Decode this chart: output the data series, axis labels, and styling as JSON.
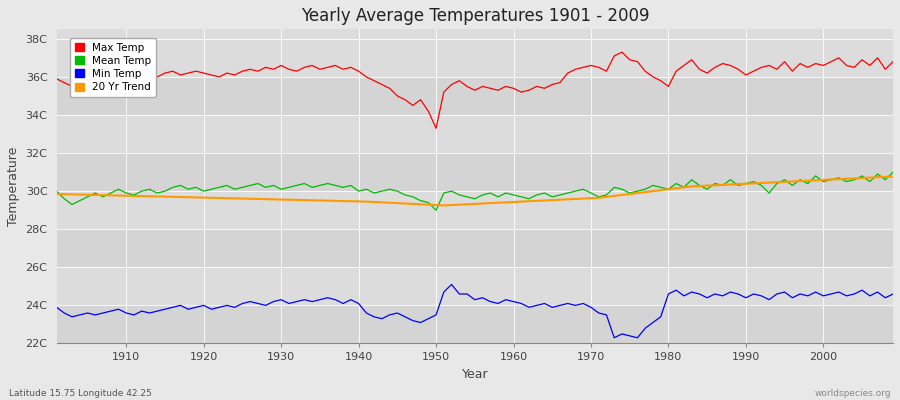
{
  "title": "Yearly Average Temperatures 1901 - 2009",
  "xlabel": "Year",
  "ylabel": "Temperature",
  "bottom_left": "Latitude 15.75 Longitude 42.25",
  "bottom_right": "worldspecies.org",
  "background_color": "#e8e8e8",
  "plot_bg_color": "#dcdcdc",
  "grid_color": "#ffffff",
  "band_colors": [
    "#d8d8d8",
    "#e0e0e0"
  ],
  "years": [
    1901,
    1902,
    1903,
    1904,
    1905,
    1906,
    1907,
    1908,
    1909,
    1910,
    1911,
    1912,
    1913,
    1914,
    1915,
    1916,
    1917,
    1918,
    1919,
    1920,
    1921,
    1922,
    1923,
    1924,
    1925,
    1926,
    1927,
    1928,
    1929,
    1930,
    1931,
    1932,
    1933,
    1934,
    1935,
    1936,
    1937,
    1938,
    1939,
    1940,
    1941,
    1942,
    1943,
    1944,
    1945,
    1946,
    1947,
    1948,
    1949,
    1950,
    1951,
    1952,
    1953,
    1954,
    1955,
    1956,
    1957,
    1958,
    1959,
    1960,
    1961,
    1962,
    1963,
    1964,
    1965,
    1966,
    1967,
    1968,
    1969,
    1970,
    1971,
    1972,
    1973,
    1974,
    1975,
    1976,
    1977,
    1978,
    1979,
    1980,
    1981,
    1982,
    1983,
    1984,
    1985,
    1986,
    1987,
    1988,
    1989,
    1990,
    1991,
    1992,
    1993,
    1994,
    1995,
    1996,
    1997,
    1998,
    1999,
    2000,
    2001,
    2002,
    2003,
    2004,
    2005,
    2006,
    2007,
    2008,
    2009
  ],
  "max_temp": [
    35.9,
    35.7,
    35.5,
    35.7,
    35.8,
    36.0,
    35.9,
    35.8,
    35.9,
    36.1,
    36.0,
    35.8,
    35.9,
    36.0,
    36.2,
    36.3,
    36.1,
    36.2,
    36.3,
    36.2,
    36.1,
    36.0,
    36.2,
    36.1,
    36.3,
    36.4,
    36.3,
    36.5,
    36.4,
    36.6,
    36.4,
    36.3,
    36.5,
    36.6,
    36.4,
    36.5,
    36.6,
    36.4,
    36.5,
    36.3,
    36.0,
    35.8,
    35.6,
    35.4,
    35.0,
    34.8,
    34.5,
    34.8,
    34.2,
    33.3,
    35.2,
    35.6,
    35.8,
    35.5,
    35.3,
    35.5,
    35.4,
    35.3,
    35.5,
    35.4,
    35.2,
    35.3,
    35.5,
    35.4,
    35.6,
    35.7,
    36.2,
    36.4,
    36.5,
    36.6,
    36.5,
    36.3,
    37.1,
    37.3,
    36.9,
    36.8,
    36.3,
    36.0,
    35.8,
    35.5,
    36.3,
    36.6,
    36.9,
    36.4,
    36.2,
    36.5,
    36.7,
    36.6,
    36.4,
    36.1,
    36.3,
    36.5,
    36.6,
    36.4,
    36.8,
    36.3,
    36.7,
    36.5,
    36.7,
    36.6,
    36.8,
    37.0,
    36.6,
    36.5,
    36.9,
    36.6,
    37.0,
    36.4,
    36.8
  ],
  "mean_temp": [
    30.0,
    29.6,
    29.3,
    29.5,
    29.7,
    29.9,
    29.7,
    29.9,
    30.1,
    29.9,
    29.8,
    30.0,
    30.1,
    29.9,
    30.0,
    30.2,
    30.3,
    30.1,
    30.2,
    30.0,
    30.1,
    30.2,
    30.3,
    30.1,
    30.2,
    30.3,
    30.4,
    30.2,
    30.3,
    30.1,
    30.2,
    30.3,
    30.4,
    30.2,
    30.3,
    30.4,
    30.3,
    30.2,
    30.3,
    30.0,
    30.1,
    29.9,
    30.0,
    30.1,
    30.0,
    29.8,
    29.7,
    29.5,
    29.4,
    29.0,
    29.9,
    30.0,
    29.8,
    29.7,
    29.6,
    29.8,
    29.9,
    29.7,
    29.9,
    29.8,
    29.7,
    29.6,
    29.8,
    29.9,
    29.7,
    29.8,
    29.9,
    30.0,
    30.1,
    29.9,
    29.7,
    29.8,
    30.2,
    30.1,
    29.9,
    30.0,
    30.1,
    30.3,
    30.2,
    30.1,
    30.4,
    30.2,
    30.6,
    30.3,
    30.1,
    30.4,
    30.3,
    30.6,
    30.3,
    30.4,
    30.5,
    30.3,
    29.9,
    30.4,
    30.6,
    30.3,
    30.6,
    30.4,
    30.8,
    30.5,
    30.6,
    30.7,
    30.5,
    30.6,
    30.8,
    30.5,
    30.9,
    30.6,
    31.0
  ],
  "min_temp": [
    23.9,
    23.6,
    23.4,
    23.5,
    23.6,
    23.5,
    23.6,
    23.7,
    23.8,
    23.6,
    23.5,
    23.7,
    23.6,
    23.7,
    23.8,
    23.9,
    24.0,
    23.8,
    23.9,
    24.0,
    23.8,
    23.9,
    24.0,
    23.9,
    24.1,
    24.2,
    24.1,
    24.0,
    24.2,
    24.3,
    24.1,
    24.2,
    24.3,
    24.2,
    24.3,
    24.4,
    24.3,
    24.1,
    24.3,
    24.1,
    23.6,
    23.4,
    23.3,
    23.5,
    23.6,
    23.4,
    23.2,
    23.1,
    23.3,
    23.5,
    24.7,
    25.1,
    24.6,
    24.6,
    24.3,
    24.4,
    24.2,
    24.1,
    24.3,
    24.2,
    24.1,
    23.9,
    24.0,
    24.1,
    23.9,
    24.0,
    24.1,
    24.0,
    24.1,
    23.9,
    23.6,
    23.5,
    22.3,
    22.5,
    22.4,
    22.3,
    22.8,
    23.1,
    23.4,
    24.6,
    24.8,
    24.5,
    24.7,
    24.6,
    24.4,
    24.6,
    24.5,
    24.7,
    24.6,
    24.4,
    24.6,
    24.5,
    24.3,
    24.6,
    24.7,
    24.4,
    24.6,
    24.5,
    24.7,
    24.5,
    24.6,
    24.7,
    24.5,
    24.6,
    24.8,
    24.5,
    24.7,
    24.4,
    24.6
  ],
  "trend": [
    29.85,
    29.84,
    29.83,
    29.82,
    29.81,
    29.8,
    29.79,
    29.78,
    29.77,
    29.76,
    29.75,
    29.74,
    29.73,
    29.72,
    29.71,
    29.7,
    29.69,
    29.68,
    29.67,
    29.66,
    29.65,
    29.64,
    29.63,
    29.62,
    29.61,
    29.6,
    29.59,
    29.58,
    29.57,
    29.56,
    29.55,
    29.54,
    29.53,
    29.52,
    29.51,
    29.5,
    29.49,
    29.48,
    29.47,
    29.46,
    29.45,
    29.43,
    29.41,
    29.39,
    29.37,
    29.35,
    29.33,
    29.31,
    29.29,
    29.27,
    29.25,
    29.27,
    29.29,
    29.31,
    29.33,
    29.35,
    29.37,
    29.39,
    29.41,
    29.43,
    29.45,
    29.47,
    29.49,
    29.51,
    29.53,
    29.55,
    29.57,
    29.59,
    29.61,
    29.63,
    29.65,
    29.7,
    29.75,
    29.8,
    29.85,
    29.9,
    29.95,
    30.0,
    30.05,
    30.1,
    30.15,
    30.2,
    30.25,
    30.27,
    30.29,
    30.31,
    30.33,
    30.35,
    30.37,
    30.39,
    30.41,
    30.43,
    30.45,
    30.47,
    30.49,
    30.51,
    30.53,
    30.55,
    30.57,
    30.59,
    30.61,
    30.63,
    30.65,
    30.67,
    30.69,
    30.71,
    30.73,
    30.75,
    30.77
  ],
  "max_color": "#ff0000",
  "mean_color": "#00bb00",
  "min_color": "#0000ff",
  "trend_color": "#ff9900",
  "yticks": [
    22,
    24,
    26,
    28,
    30,
    32,
    34,
    36,
    38
  ],
  "ytick_labels": [
    "22C",
    "24C",
    "26C",
    "28C",
    "30C",
    "32C",
    "34C",
    "36C",
    "38C"
  ],
  "xticks": [
    1910,
    1920,
    1930,
    1940,
    1950,
    1960,
    1970,
    1980,
    1990,
    2000
  ],
  "ylim": [
    22,
    38.5
  ],
  "xlim": [
    1901,
    2009
  ]
}
